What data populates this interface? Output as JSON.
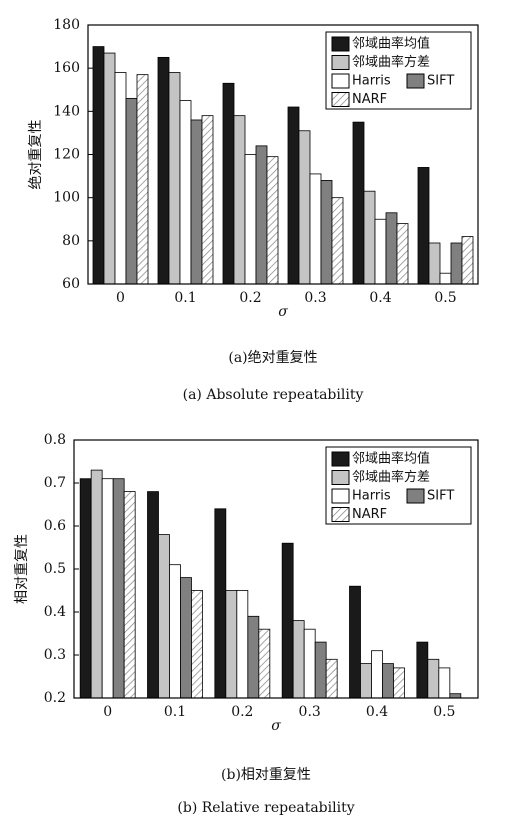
{
  "chart_data": [
    {
      "type": "bar",
      "y_label": "绝对重复性",
      "x_label": "σ",
      "caption": "(a)绝对重复性",
      "caption_en": "(a) Absolute repeatability",
      "categories": [
        "0",
        "0.1",
        "0.2",
        "0.3",
        "0.4",
        "0.5"
      ],
      "series": [
        {
          "name": "邻域曲率均值",
          "color": "#1a1a1a",
          "values": [
            170,
            165,
            153,
            142,
            135,
            114
          ]
        },
        {
          "name": "邻域曲率方差",
          "color": "#c4c4c4",
          "values": [
            167,
            158,
            138,
            131,
            103,
            79
          ]
        },
        {
          "name": "Harris",
          "color": "#ffffff",
          "values": [
            158,
            145,
            120,
            111,
            90,
            65
          ]
        },
        {
          "name": "SIFT",
          "color": "#808080",
          "values": [
            146,
            136,
            124,
            108,
            93,
            79
          ]
        },
        {
          "name": "NARF",
          "color": "#ffffff",
          "hatch": true,
          "values": [
            157,
            138,
            119,
            100,
            88,
            82
          ]
        }
      ],
      "ylim": [
        60,
        180
      ],
      "yticks": [
        60,
        80,
        100,
        120,
        140,
        160,
        180
      ],
      "legend": "upper right"
    },
    {
      "type": "bar",
      "y_label": "相对重复性",
      "x_label": "σ",
      "caption": "(b)相对重复性",
      "caption_en": "(b) Relative repeatability",
      "categories": [
        "0",
        "0.1",
        "0.2",
        "0.3",
        "0.4",
        "0.5"
      ],
      "series": [
        {
          "name": "邻域曲率均值",
          "color": "#1a1a1a",
          "values": [
            0.71,
            0.68,
            0.64,
            0.56,
            0.46,
            0.33
          ]
        },
        {
          "name": "邻域曲率方差",
          "color": "#c4c4c4",
          "values": [
            0.73,
            0.58,
            0.45,
            0.38,
            0.28,
            0.29
          ]
        },
        {
          "name": "Harris",
          "color": "#ffffff",
          "values": [
            0.71,
            0.51,
            0.45,
            0.36,
            0.31,
            0.27
          ]
        },
        {
          "name": "SIFT",
          "color": "#808080",
          "values": [
            0.71,
            0.48,
            0.39,
            0.33,
            0.28,
            0.21
          ]
        },
        {
          "name": "NARF",
          "color": "#ffffff",
          "hatch": true,
          "values": [
            0.68,
            0.45,
            0.36,
            0.29,
            0.27,
            null
          ]
        }
      ],
      "ylim": [
        0.2,
        0.8
      ],
      "yticks": [
        0.2,
        0.3,
        0.4,
        0.5,
        0.6,
        0.7,
        0.8
      ],
      "legend": "upper right"
    }
  ]
}
